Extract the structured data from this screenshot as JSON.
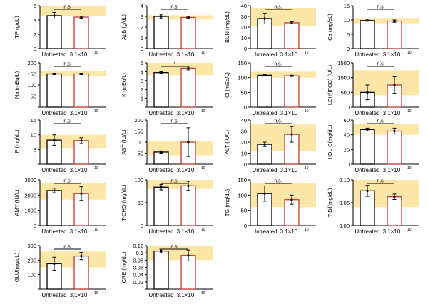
{
  "colors": {
    "reference_band": "#fde7a8",
    "untreated_bar": "#000000",
    "treated_bar": "#c0392b",
    "axis": "#000000"
  },
  "categories": [
    "Untreated",
    "3.1×10"
  ],
  "category_superscript": "10",
  "chart_data": [
    {
      "type": "bar",
      "ylabel": "TP (g/dL)",
      "ylim": [
        0,
        6
      ],
      "yticks": [
        0,
        2,
        4,
        6
      ],
      "yticklabels": [
        "0",
        "2",
        "4",
        "6"
      ],
      "band": [
        4.6,
        5.9
      ],
      "values": [
        4.6,
        4.4
      ],
      "errors": [
        0.45,
        0.15
      ],
      "sig": "n.s."
    },
    {
      "type": "bar",
      "ylabel": "ALB (g/dL)",
      "ylim": [
        0,
        4
      ],
      "yticks": [
        0,
        1,
        2,
        3,
        4
      ],
      "yticklabels": [
        "0",
        "1",
        "2",
        "3",
        "4"
      ],
      "band": [
        2.7,
        3.1
      ],
      "values": [
        3.0,
        2.9
      ],
      "errors": [
        0.2,
        0.05
      ],
      "sig": "n.s."
    },
    {
      "type": "bar",
      "ylabel": "BUN (mg/dL)",
      "ylim": [
        0,
        40
      ],
      "yticks": [
        0,
        10,
        20,
        30,
        40
      ],
      "yticklabels": [
        "0",
        "10",
        "20",
        "30",
        "40"
      ],
      "band": [
        21,
        38
      ],
      "values": [
        28,
        24
      ],
      "errors": [
        5,
        1
      ],
      "sig": "n.s."
    },
    {
      "type": "bar",
      "ylabel": "Ca (mg/dL)",
      "ylim": [
        0,
        15
      ],
      "yticks": [
        0,
        5,
        10,
        15
      ],
      "yticklabels": [
        "0",
        "5",
        "10",
        "15"
      ],
      "band": [
        8.8,
        10.7
      ],
      "values": [
        9.8,
        9.6
      ],
      "errors": [
        0.2,
        0.4
      ],
      "sig": "n.s."
    },
    {
      "type": "bar",
      "ylabel": "Na (mEq/L)",
      "ylim": [
        0,
        200
      ],
      "yticks": [
        0,
        50,
        100,
        150,
        200
      ],
      "yticklabels": [
        "0",
        "50",
        "100",
        "150",
        "200"
      ],
      "band": [
        138,
        163
      ],
      "values": [
        150,
        150
      ],
      "errors": [
        3,
        3
      ],
      "sig": "n.s."
    },
    {
      "type": "bar",
      "ylabel": "K (mEq/L)",
      "ylim": [
        0,
        5
      ],
      "yticks": [
        0,
        1,
        2,
        3,
        4,
        5
      ],
      "yticklabels": [
        "0",
        "1",
        "2",
        "3",
        "4",
        "5"
      ],
      "band": [
        3.6,
        5.0
      ],
      "values": [
        3.9,
        4.4
      ],
      "errors": [
        0.1,
        0.2
      ],
      "sig": "*"
    },
    {
      "type": "bar",
      "ylabel": "Cl (mEq/L)",
      "ylim": [
        0,
        150
      ],
      "yticks": [
        0,
        50,
        100,
        150
      ],
      "yticklabels": [
        "0",
        "50",
        "100",
        "150"
      ],
      "band": [
        100,
        120
      ],
      "values": [
        108,
        106
      ],
      "errors": [
        2,
        2
      ],
      "sig": "n.s."
    },
    {
      "type": "bar",
      "ylabel": "LDH(IFCC) (U/L)",
      "ylim": [
        0,
        1500
      ],
      "yticks": [
        0,
        500,
        1000,
        1500
      ],
      "yticklabels": [
        "0",
        "500",
        "1000",
        "1500"
      ],
      "band": [
        400,
        1250
      ],
      "values": [
        500,
        750
      ],
      "errors": [
        250,
        280
      ],
      "sig": "n.s."
    },
    {
      "type": "bar",
      "ylabel": "IP (mg/dL)",
      "ylim": [
        0,
        15
      ],
      "yticks": [
        0,
        5,
        10,
        15
      ],
      "yticklabels": [
        "0",
        "5",
        "10",
        "15"
      ],
      "band": [
        5.5,
        10.0
      ],
      "values": [
        8.2,
        8.0
      ],
      "errors": [
        1.8,
        1.0
      ],
      "sig": "n.s."
    },
    {
      "type": "bar",
      "ylabel": "AST (IU/L)",
      "ylim": [
        0,
        200
      ],
      "yticks": [
        0,
        50,
        100,
        150,
        200
      ],
      "yticklabels": [
        "0",
        "50",
        "100",
        "150",
        "200"
      ],
      "band": [
        40,
        105
      ],
      "values": [
        55,
        100
      ],
      "errors": [
        5,
        65
      ],
      "sig": "n.s."
    },
    {
      "type": "bar",
      "ylabel": "ALT (IU/L)",
      "ylim": [
        0,
        40
      ],
      "yticks": [
        0,
        10,
        20,
        30,
        40
      ],
      "yticklabels": [
        "0",
        "10",
        "20",
        "30",
        "40"
      ],
      "band": [
        12,
        36
      ],
      "values": [
        18,
        27
      ],
      "errors": [
        2,
        7
      ],
      "sig": "n.s."
    },
    {
      "type": "bar",
      "ylabel": "HDL-C(mg/dL)",
      "ylim": [
        0,
        60
      ],
      "yticks": [
        0,
        20,
        40,
        60
      ],
      "yticklabels": [
        "0",
        "20",
        "40",
        "60"
      ],
      "band": [
        40,
        55
      ],
      "values": [
        47,
        45
      ],
      "errors": [
        2,
        4
      ],
      "sig": "n.s."
    },
    {
      "type": "bar",
      "ylabel": "AMY (IU/L)",
      "ylim": [
        0,
        3000
      ],
      "yticks": [
        0,
        1000,
        2000,
        3000
      ],
      "yticklabels": [
        "0",
        "1000",
        "2000",
        "3000"
      ],
      "band": [
        1700,
        2800
      ],
      "values": [
        2300,
        2100
      ],
      "errors": [
        150,
        450
      ],
      "sig": "n.s."
    },
    {
      "type": "bar",
      "ylabel": "T-CHO (mg/dL)",
      "ylim": [
        0,
        100
      ],
      "yticks": [
        0,
        50,
        100
      ],
      "yticklabels": [
        "0",
        "50",
        "100"
      ],
      "band": [
        80,
        100
      ],
      "values": [
        84,
        87
      ],
      "errors": [
        6,
        10
      ],
      "sig": "n.s."
    },
    {
      "type": "bar",
      "ylabel": "TG (mg/dL)",
      "ylim": [
        0,
        150
      ],
      "yticks": [
        0,
        50,
        100,
        150
      ],
      "yticklabels": [
        "0",
        "50",
        "100",
        "150"
      ],
      "band": [
        60,
        140
      ],
      "values": [
        105,
        85
      ],
      "errors": [
        25,
        15
      ],
      "sig": "n.s."
    },
    {
      "type": "bar",
      "ylabel": "T-Bil(mg/dL)",
      "ylim": [
        0,
        0.1
      ],
      "yticks": [
        0,
        0.05,
        0.1
      ],
      "yticklabels": [
        "0.00",
        "0.05",
        "0.10"
      ],
      "band": [
        0.04,
        0.1
      ],
      "values": [
        0.076,
        0.063
      ],
      "errors": [
        0.012,
        0.006
      ],
      "sig": "n.s."
    },
    {
      "type": "bar",
      "ylabel": "GLU(mg/dL)",
      "ylim": [
        0,
        300
      ],
      "yticks": [
        0,
        100,
        200,
        300
      ],
      "yticklabels": [
        "0",
        "100",
        "200",
        "300"
      ],
      "band": [
        150,
        260
      ],
      "values": [
        175,
        228
      ],
      "errors": [
        45,
        25
      ],
      "sig": "n.s."
    },
    {
      "type": "bar",
      "ylabel": "CRE (mg/dL)",
      "ylim": [
        0,
        0.12
      ],
      "yticks": [
        0,
        0.02,
        0.04,
        0.06,
        0.08,
        0.1,
        0.12
      ],
      "yticklabels": [
        "0",
        "0.02",
        "0.04",
        "0.06",
        "0.08",
        "0.1",
        "0.12"
      ],
      "band": [
        0.08,
        0.12
      ],
      "values": [
        0.105,
        0.093
      ],
      "errors": [
        0.005,
        0.015
      ],
      "sig": "n.s."
    }
  ]
}
